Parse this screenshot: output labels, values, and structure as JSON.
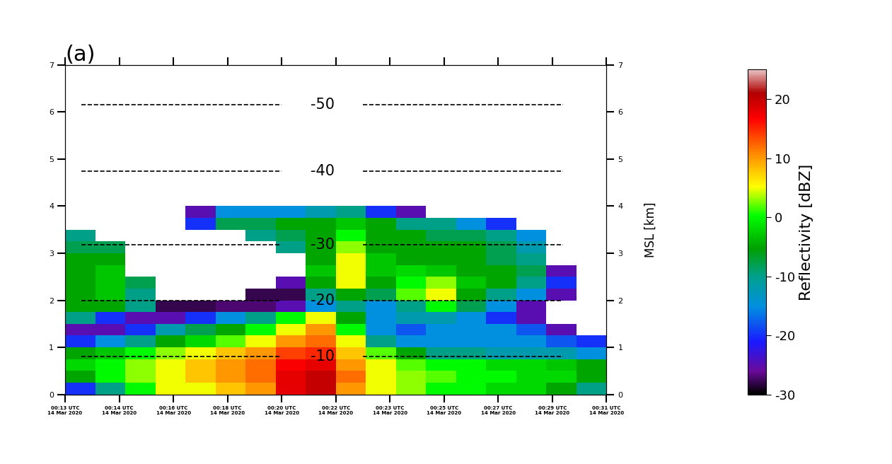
{
  "chart_data": {
    "type": "heatmap",
    "title": "(a)",
    "y2label": "MSL [km]",
    "xlim": [
      13,
      31
    ],
    "xticks": [
      {
        "value": 13,
        "label": "00:13 UTC\n14 Mar 2020"
      },
      {
        "value": 14.8,
        "label": "00:14 UTC\n14 Mar 2020"
      },
      {
        "value": 16.6,
        "label": "00:16 UTC\n14 Mar 2020"
      },
      {
        "value": 18.4,
        "label": "00:18 UTC\n14 Mar 2020"
      },
      {
        "value": 20.2,
        "label": "00:20 UTC\n14 Mar 2020"
      },
      {
        "value": 22,
        "label": "00:22 UTC\n14 Mar 2020"
      },
      {
        "value": 23.8,
        "label": "00:23 UTC\n14 Mar 2020"
      },
      {
        "value": 25.6,
        "label": "00:25 UTC\n14 Mar 2020"
      },
      {
        "value": 27.4,
        "label": "00:27 UTC\n14 Mar 2020"
      },
      {
        "value": 29.2,
        "label": "00:29 UTC\n14 Mar 2020"
      },
      {
        "value": 31,
        "label": "00:31 UTC\n14 Mar 2020"
      }
    ],
    "ylim": [
      0,
      7
    ],
    "yticks": [
      0,
      1,
      2,
      3,
      4,
      5,
      6,
      7
    ],
    "y2lim": [
      0,
      7
    ],
    "y2ticks": [
      0,
      1,
      2,
      3,
      4,
      5,
      6,
      7
    ],
    "isotherms": [
      {
        "label": "-50",
        "height": 6.15
      },
      {
        "label": "-40",
        "height": 4.75
      },
      {
        "label": "-30",
        "height": 3.18
      },
      {
        "label": "-20",
        "height": 2.0
      },
      {
        "label": "-10",
        "height": 0.8
      }
    ],
    "colorbar": {
      "label": "Reflectivity [dBZ]",
      "range": [
        -30,
        25
      ],
      "ticks": [
        -30,
        -20,
        -10,
        0,
        10,
        20
      ]
    },
    "x_edges": [
      13,
      14,
      15,
      16,
      17,
      18,
      19,
      20,
      21,
      22,
      23,
      24,
      25,
      26,
      27,
      28,
      29,
      30,
      31
    ],
    "y_edges": [
      0,
      0.25,
      0.5,
      0.75,
      1.0,
      1.25,
      1.5,
      1.75,
      2.0,
      2.25,
      2.5,
      2.75,
      3.0,
      3.25,
      3.5,
      3.75,
      4.0
    ],
    "cells": [
      [
        -20,
        -10,
        0,
        5,
        5,
        8,
        10,
        18,
        20,
        10,
        5,
        3,
        0,
        0,
        -2,
        -2,
        -5,
        -10
      ],
      [
        -5,
        0,
        3,
        5,
        8,
        10,
        12,
        18,
        20,
        12,
        5,
        3,
        2,
        0,
        0,
        -2,
        -2,
        -5
      ],
      [
        -2,
        0,
        3,
        5,
        8,
        10,
        12,
        17,
        18,
        10,
        5,
        2,
        0,
        0,
        -2,
        -2,
        -3,
        -5
      ],
      [
        -5,
        -3,
        0,
        3,
        5,
        8,
        10,
        14,
        15,
        8,
        2,
        -5,
        -10,
        -10,
        -12,
        -12,
        -12,
        -15
      ],
      [
        -20,
        -15,
        -10,
        -5,
        -2,
        2,
        5,
        10,
        12,
        5,
        -10,
        -15,
        -15,
        -15,
        -15,
        -15,
        -18,
        -20
      ],
      [
        -25,
        -25,
        -20,
        -12,
        -8,
        -5,
        0,
        5,
        10,
        0,
        -15,
        -18,
        -15,
        -15,
        -15,
        -18,
        -25,
        null
      ],
      [
        -10,
        -20,
        -25,
        -25,
        -20,
        -15,
        -10,
        0,
        5,
        -5,
        -15,
        -12,
        -12,
        -15,
        -20,
        -25,
        null,
        null
      ],
      [
        -5,
        -5,
        -10,
        -28,
        -28,
        -27,
        -27,
        -25,
        -15,
        -10,
        -15,
        -10,
        0,
        -8,
        -15,
        -25,
        null,
        null
      ],
      [
        -5,
        -3,
        -10,
        null,
        null,
        null,
        -28,
        -28,
        -10,
        -5,
        -8,
        2,
        5,
        -5,
        -10,
        -15,
        -25,
        null
      ],
      [
        -5,
        -3,
        -8,
        null,
        null,
        null,
        null,
        -25,
        -5,
        5,
        -5,
        0,
        3,
        -3,
        -5,
        -10,
        -20,
        null
      ],
      [
        -5,
        -3,
        null,
        null,
        null,
        null,
        null,
        null,
        -3,
        5,
        -3,
        -2,
        -3,
        -5,
        -5,
        -8,
        -25,
        null
      ],
      [
        -5,
        -5,
        null,
        null,
        null,
        null,
        null,
        null,
        -5,
        5,
        -3,
        -5,
        -5,
        -5,
        -8,
        -10,
        null,
        null
      ],
      [
        -8,
        -8,
        null,
        null,
        null,
        null,
        null,
        -10,
        -5,
        3,
        -5,
        -5,
        -5,
        -5,
        -8,
        -12,
        null,
        null
      ],
      [
        -10,
        null,
        null,
        null,
        null,
        null,
        -10,
        -8,
        -5,
        0,
        -5,
        -5,
        -8,
        -8,
        -10,
        -15,
        null,
        null
      ],
      [
        null,
        null,
        null,
        null,
        -20,
        -8,
        -8,
        -5,
        -5,
        -3,
        -5,
        -10,
        -10,
        -15,
        -20,
        null,
        null,
        null
      ],
      [
        null,
        null,
        null,
        null,
        -25,
        -15,
        -15,
        -15,
        -12,
        -10,
        -20,
        -25,
        null,
        null,
        null,
        null,
        null,
        null
      ]
    ]
  }
}
